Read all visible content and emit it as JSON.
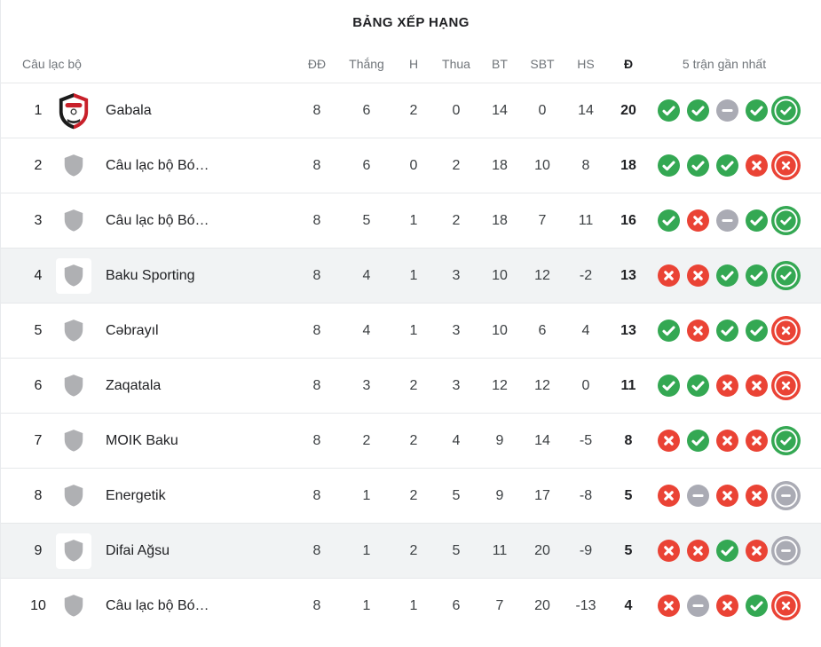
{
  "title": "BẢNG XẾP HẠNG",
  "colors": {
    "win": "#34A853",
    "loss": "#EA4335",
    "draw": "#AAABB4",
    "highlight_row": "#F1F3F4",
    "separator": "#E6E8EA",
    "header_text": "#70757A",
    "shield_gray": "#AFB0B3"
  },
  "header": {
    "club": "Câu lạc bộ",
    "played": "ĐĐ",
    "wins": "Thắng",
    "draws": "H",
    "losses": "Thua",
    "goals_for": "BT",
    "goals_against": "SBT",
    "goal_diff": "HS",
    "points": "Đ",
    "form": "5 trận gần nhất"
  },
  "rows": [
    {
      "rank": "1",
      "name": "Gabala",
      "crest": "gabala",
      "highlighted": false,
      "played": "8",
      "wins": "6",
      "draws": "2",
      "losses": "0",
      "gf": "14",
      "ga": "0",
      "gd": "14",
      "points": "20",
      "form": [
        "win",
        "win",
        "draw",
        "win",
        "win"
      ]
    },
    {
      "rank": "2",
      "name": "Câu lạc bộ Bó…",
      "crest": "generic",
      "highlighted": false,
      "played": "8",
      "wins": "6",
      "draws": "0",
      "losses": "2",
      "gf": "18",
      "ga": "10",
      "gd": "8",
      "points": "18",
      "form": [
        "win",
        "win",
        "win",
        "loss",
        "loss"
      ]
    },
    {
      "rank": "3",
      "name": "Câu lạc bộ Bó…",
      "crest": "generic",
      "highlighted": false,
      "played": "8",
      "wins": "5",
      "draws": "1",
      "losses": "2",
      "gf": "18",
      "ga": "7",
      "gd": "11",
      "points": "16",
      "form": [
        "win",
        "loss",
        "draw",
        "win",
        "win"
      ]
    },
    {
      "rank": "4",
      "name": "Baku Sporting",
      "crest": "generic",
      "highlighted": true,
      "played": "8",
      "wins": "4",
      "draws": "1",
      "losses": "3",
      "gf": "10",
      "ga": "12",
      "gd": "-2",
      "points": "13",
      "form": [
        "loss",
        "loss",
        "win",
        "win",
        "win"
      ]
    },
    {
      "rank": "5",
      "name": "Cəbrayıl",
      "crest": "generic",
      "highlighted": false,
      "played": "8",
      "wins": "4",
      "draws": "1",
      "losses": "3",
      "gf": "10",
      "ga": "6",
      "gd": "4",
      "points": "13",
      "form": [
        "win",
        "loss",
        "win",
        "win",
        "loss"
      ]
    },
    {
      "rank": "6",
      "name": "Zaqatala",
      "crest": "generic",
      "highlighted": false,
      "played": "8",
      "wins": "3",
      "draws": "2",
      "losses": "3",
      "gf": "12",
      "ga": "12",
      "gd": "0",
      "points": "11",
      "form": [
        "win",
        "win",
        "loss",
        "loss",
        "loss"
      ]
    },
    {
      "rank": "7",
      "name": "MOIK Baku",
      "crest": "generic",
      "highlighted": false,
      "played": "8",
      "wins": "2",
      "draws": "2",
      "losses": "4",
      "gf": "9",
      "ga": "14",
      "gd": "-5",
      "points": "8",
      "form": [
        "loss",
        "win",
        "loss",
        "loss",
        "win"
      ]
    },
    {
      "rank": "8",
      "name": "Energetik",
      "crest": "generic",
      "highlighted": false,
      "played": "8",
      "wins": "1",
      "draws": "2",
      "losses": "5",
      "gf": "9",
      "ga": "17",
      "gd": "-8",
      "points": "5",
      "form": [
        "loss",
        "draw",
        "loss",
        "loss",
        "draw"
      ]
    },
    {
      "rank": "9",
      "name": "Difai Ağsu",
      "crest": "generic",
      "highlighted": true,
      "played": "8",
      "wins": "1",
      "draws": "2",
      "losses": "5",
      "gf": "11",
      "ga": "20",
      "gd": "-9",
      "points": "5",
      "form": [
        "loss",
        "loss",
        "win",
        "loss",
        "draw"
      ]
    },
    {
      "rank": "10",
      "name": "Câu lạc bộ Bó…",
      "crest": "generic",
      "highlighted": false,
      "played": "8",
      "wins": "1",
      "draws": "1",
      "losses": "6",
      "gf": "7",
      "ga": "20",
      "gd": "-13",
      "points": "4",
      "form": [
        "loss",
        "draw",
        "loss",
        "win",
        "loss"
      ]
    }
  ]
}
